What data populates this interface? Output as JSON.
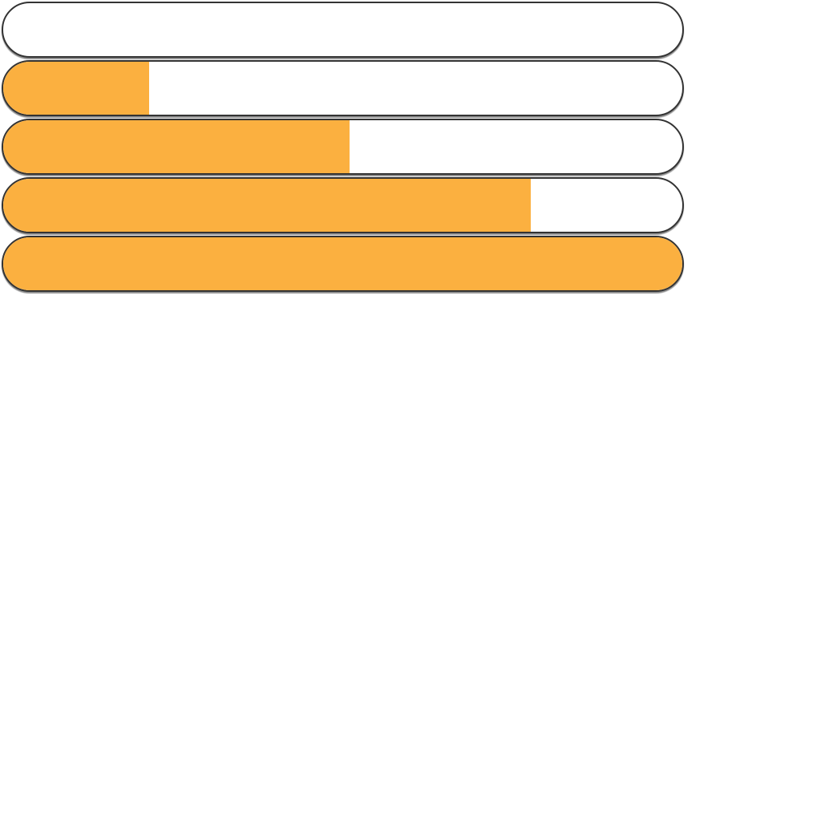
{
  "colors": {
    "fill": "#FBB040",
    "track": "#FFFFFF",
    "border": "#333333"
  },
  "progress_bars": [
    {
      "value": 0.0
    },
    {
      "value": 0.215
    },
    {
      "value": 0.51
    },
    {
      "value": 0.777
    },
    {
      "value": 1.0
    }
  ]
}
